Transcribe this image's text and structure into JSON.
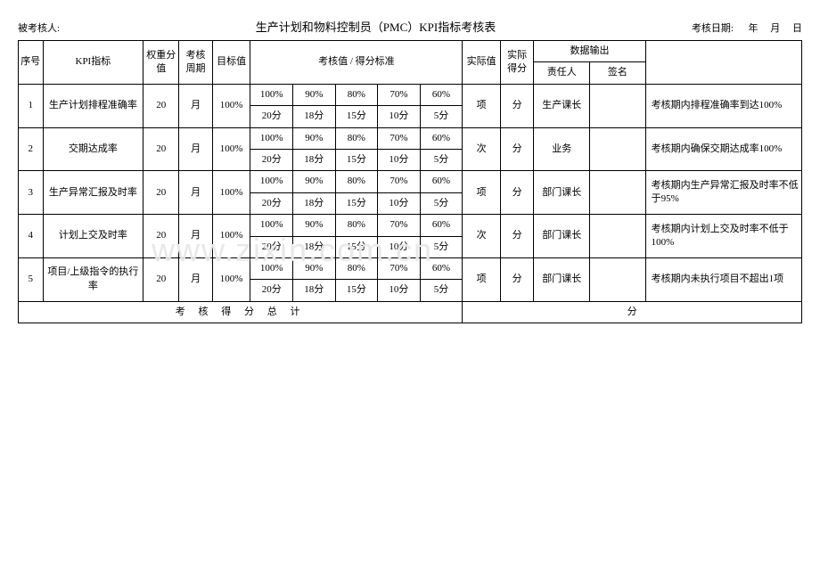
{
  "header": {
    "examinee_label": "被考核人:",
    "title": "生产计划和物料控制员（PMC）KPI指标考核表",
    "date_label": "考核日期:",
    "year": "年",
    "month": "月",
    "day": "日"
  },
  "columns": {
    "seq": "序号",
    "kpi": "KPI指标",
    "weight": "权重分值",
    "cycle": "考核周期",
    "target": "目标值",
    "standard": "考核值 / 得分标准",
    "actual_value": "实际值",
    "actual_score": "实际得分",
    "data_output": "数据输出",
    "responsible": "责任人",
    "signature": "签名"
  },
  "tiers_pct": [
    "100%",
    "90%",
    "80%",
    "70%",
    "60%"
  ],
  "tiers_score": [
    "20分",
    "18分",
    "15分",
    "10分",
    "5分"
  ],
  "rows": [
    {
      "seq": "1",
      "kpi": "生产计划排程准确率",
      "weight": "20",
      "cycle": "月",
      "target": "100%",
      "actual_unit": "项",
      "score_unit": "分",
      "responsible": "生产课长",
      "remark": "考核期内排程准确率到达100%"
    },
    {
      "seq": "2",
      "kpi": "交期达成率",
      "weight": "20",
      "cycle": "月",
      "target": "100%",
      "actual_unit": "次",
      "score_unit": "分",
      "responsible": "业务",
      "remark": "考核期内确保交期达成率100%"
    },
    {
      "seq": "3",
      "kpi": "生产异常汇报及时率",
      "weight": "20",
      "cycle": "月",
      "target": "100%",
      "actual_unit": "项",
      "score_unit": "分",
      "responsible": "部门课长",
      "remark": "考核期内生产异常汇报及时率不低于95%"
    },
    {
      "seq": "4",
      "kpi": "计划上交及时率",
      "weight": "20",
      "cycle": "月",
      "target": "100%",
      "actual_unit": "次",
      "score_unit": "分",
      "responsible": "部门课长",
      "remark": "考核期内计划上交及时率不低于100%"
    },
    {
      "seq": "5",
      "kpi": "项目/上级指令的执行率",
      "weight": "20",
      "cycle": "月",
      "target": "100%",
      "actual_unit": "项",
      "score_unit": "分",
      "responsible": "部门课长",
      "remark": "考核期内未执行项目不超出1项"
    }
  ],
  "total": {
    "label": "考 核 得 分 总 计",
    "unit": "分"
  },
  "watermark": "www.zixin.com.cn"
}
